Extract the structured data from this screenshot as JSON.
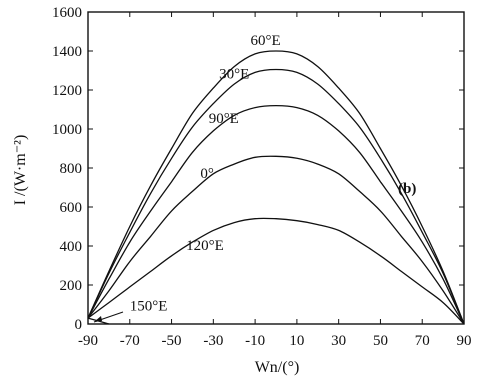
{
  "chart_data": {
    "type": "line",
    "panel_label": "(b)",
    "ylabel": "I /(W·m⁻²)",
    "xlabel": "Wn/(°)",
    "xlim": [
      -90,
      90
    ],
    "ylim": [
      0,
      1600
    ],
    "x_ticks": [
      -90,
      -70,
      -50,
      -30,
      -10,
      10,
      30,
      50,
      70,
      90
    ],
    "y_ticks": [
      0,
      200,
      400,
      600,
      800,
      1000,
      1200,
      1400,
      1600
    ],
    "grid": false,
    "x": [
      -90,
      -80,
      -70,
      -60,
      -50,
      -40,
      -30,
      -20,
      -10,
      0,
      10,
      20,
      30,
      40,
      50,
      60,
      70,
      80,
      90
    ],
    "series": [
      {
        "name": "60°E",
        "values": [
          30,
          270,
          500,
          710,
          900,
          1080,
          1210,
          1320,
          1385,
          1400,
          1385,
          1320,
          1210,
          1080,
          900,
          710,
          500,
          270,
          0
        ]
      },
      {
        "name": "30°E",
        "values": [
          30,
          260,
          470,
          670,
          850,
          1010,
          1130,
          1230,
          1290,
          1305,
          1290,
          1230,
          1130,
          1010,
          850,
          670,
          470,
          260,
          0
        ]
      },
      {
        "name": "90°E",
        "values": [
          30,
          230,
          420,
          580,
          730,
          880,
          990,
          1070,
          1110,
          1120,
          1110,
          1070,
          990,
          880,
          730,
          580,
          420,
          230,
          0
        ]
      },
      {
        "name": "0°",
        "values": [
          30,
          170,
          320,
          450,
          580,
          680,
          770,
          820,
          855,
          860,
          850,
          820,
          770,
          680,
          580,
          450,
          320,
          170,
          0
        ]
      },
      {
        "name": "120°E",
        "values": [
          30,
          110,
          190,
          270,
          350,
          420,
          480,
          520,
          540,
          540,
          530,
          510,
          480,
          420,
          350,
          270,
          190,
          110,
          0
        ]
      },
      {
        "name": "150°E",
        "values": [
          30,
          0,
          null,
          null,
          null,
          null,
          null,
          null,
          null,
          null,
          null,
          null,
          null,
          null,
          null,
          null,
          null,
          null,
          null
        ]
      }
    ],
    "curve_labels": [
      {
        "text": "60°E",
        "series": 0,
        "x": -5,
        "y": 1430
      },
      {
        "text": "30°E",
        "series": 1,
        "x": -20,
        "y": 1260
      },
      {
        "text": "90°E",
        "series": 2,
        "x": -25,
        "y": 1030
      },
      {
        "text": "0°",
        "series": 3,
        "x": -33,
        "y": 750
      },
      {
        "text": "120°E",
        "series": 4,
        "x": -34,
        "y": 380
      },
      {
        "text": "150°E",
        "series": 5,
        "x": -61,
        "y": 70
      }
    ]
  }
}
